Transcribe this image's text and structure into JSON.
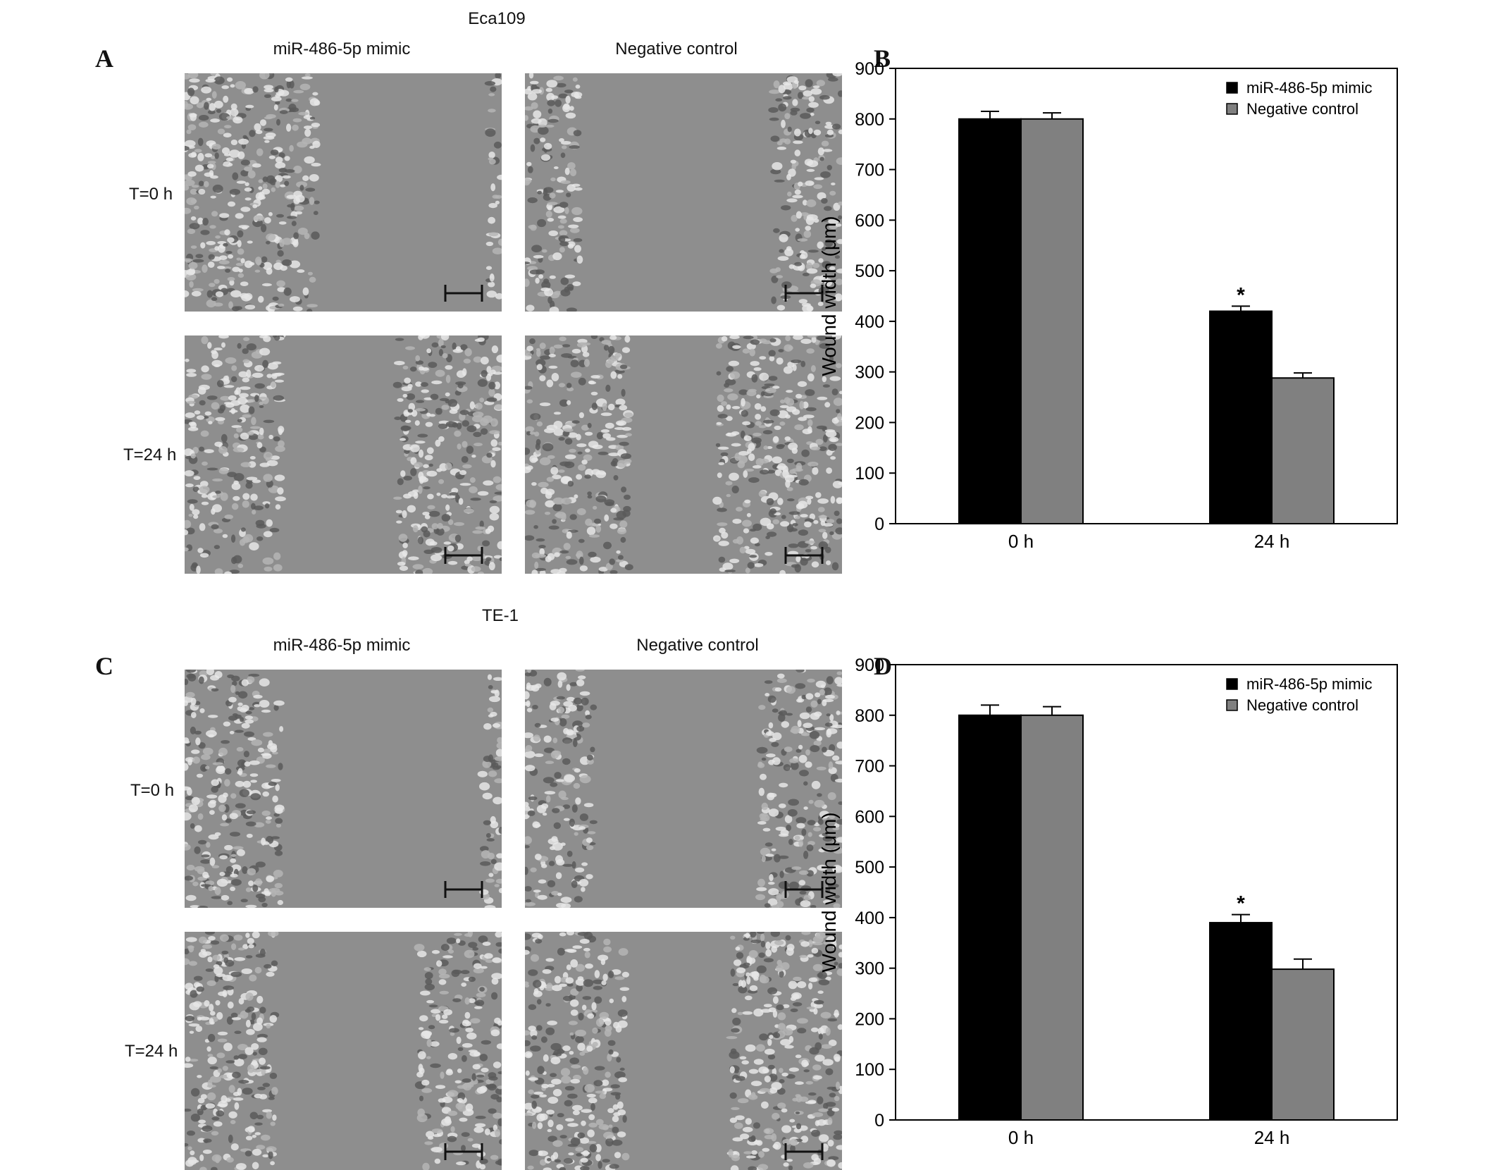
{
  "figure": {
    "A": {
      "letter": "A",
      "cell_line": "Eca109",
      "columns": [
        "miR-486-5p mimic",
        "Negative control"
      ],
      "rows": [
        "T=0 h",
        "T=24 h"
      ]
    },
    "B": {
      "letter": "B"
    },
    "C": {
      "letter": "C",
      "cell_line": "TE-1",
      "columns": [
        "miR-486-5p mimic",
        "Negative control"
      ],
      "rows": [
        "T=0 h",
        "T=24 h"
      ]
    },
    "D": {
      "letter": "D"
    }
  },
  "chart_data": [
    {
      "panel": "B",
      "type": "bar",
      "categories": [
        "0 h",
        "24 h"
      ],
      "series": [
        {
          "name": "miR-486-5p mimic",
          "values": [
            800,
            420
          ],
          "errors": [
            15,
            10
          ],
          "color": "#000000"
        },
        {
          "name": "Negative control",
          "values": [
            800,
            288
          ],
          "errors": [
            12,
            10
          ],
          "color": "#808080"
        }
      ],
      "ylabel": "Wound width (μm)",
      "ylim": [
        0,
        900
      ],
      "yticks": [
        0,
        100,
        200,
        300,
        400,
        500,
        600,
        700,
        800,
        900
      ],
      "annotations": [
        {
          "text": "*",
          "category": "24 h",
          "series": "miR-486-5p mimic"
        }
      ],
      "legend": "top-right",
      "grid": false
    },
    {
      "panel": "D",
      "type": "bar",
      "categories": [
        "0 h",
        "24 h"
      ],
      "series": [
        {
          "name": "miR-486-5p mimic",
          "values": [
            800,
            390
          ],
          "errors": [
            20,
            16
          ],
          "color": "#000000"
        },
        {
          "name": "Negative control",
          "values": [
            800,
            298
          ],
          "errors": [
            17,
            20
          ],
          "color": "#808080"
        }
      ],
      "ylabel": "Wound width (μm)",
      "ylim": [
        0,
        900
      ],
      "yticks": [
        0,
        100,
        200,
        300,
        400,
        500,
        600,
        700,
        800,
        900
      ],
      "annotations": [
        {
          "text": "*",
          "category": "24 h",
          "series": "miR-486-5p mimic"
        }
      ],
      "legend": "top-right",
      "grid": false
    }
  ]
}
